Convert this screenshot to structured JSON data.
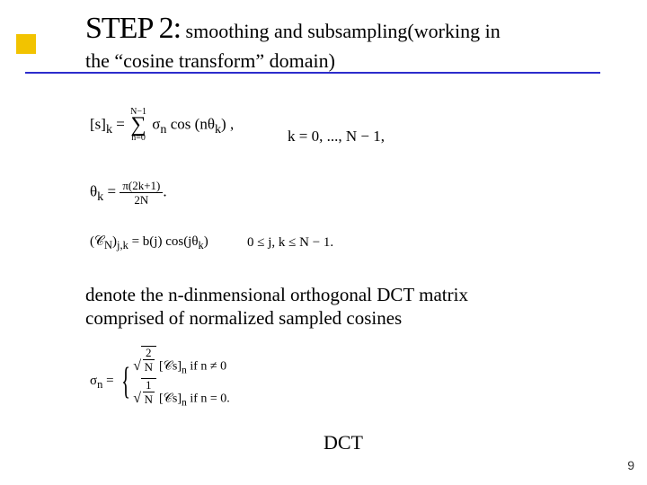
{
  "accent_color": "#f2c300",
  "underline_color": "#2c2ccc",
  "title": {
    "step": "STEP 2:",
    "rest1": "smoothing and subsampling(working in",
    "line2": "the “cosine transform” domain)"
  },
  "formula1": {
    "lhs": "[s]",
    "lhs_sub": "k",
    "eq": " = ",
    "sum_top": "N−1",
    "sum_bot": "n=0",
    "body": "σ",
    "body_sub": "n",
    "cos": " cos (nθ",
    "cos_sub": "k",
    "cos_end": ") ,",
    "range": "k = 0, ..., N − 1,"
  },
  "formula2": {
    "lhs": "θ",
    "lhs_sub": "k",
    "eq": " = ",
    "num": "π(2k+1)",
    "den": "2N",
    "end": "."
  },
  "formula3": {
    "lhs": "(𝒞",
    "lhs_sub1": "N",
    "mid": ")",
    "lhs_sub2": "j,k",
    "eq": " = b(j) cos(jθ",
    "eq_sub": "k",
    "end": ")",
    "range": "0 ≤ j, k ≤ N − 1."
  },
  "caption": {
    "line1": "denote the n-dinmensional orthogonal DCT matrix",
    "line2": "comprised of normalized sampled cosines"
  },
  "formula4": {
    "lhs": "σ",
    "lhs_sub": "n",
    "eq": " = ",
    "row1_frac_num": "2",
    "row1_frac_den": "N",
    "row1_body": "[𝒞s]",
    "row1_sub": "n",
    "row1_cond": " if n ≠ 0",
    "row2_frac_num": "1",
    "row2_frac_den": "N",
    "row2_body": "[𝒞s]",
    "row2_sub": "n",
    "row2_cond": " if n = 0."
  },
  "dct_label": "DCT",
  "page_number": "9"
}
